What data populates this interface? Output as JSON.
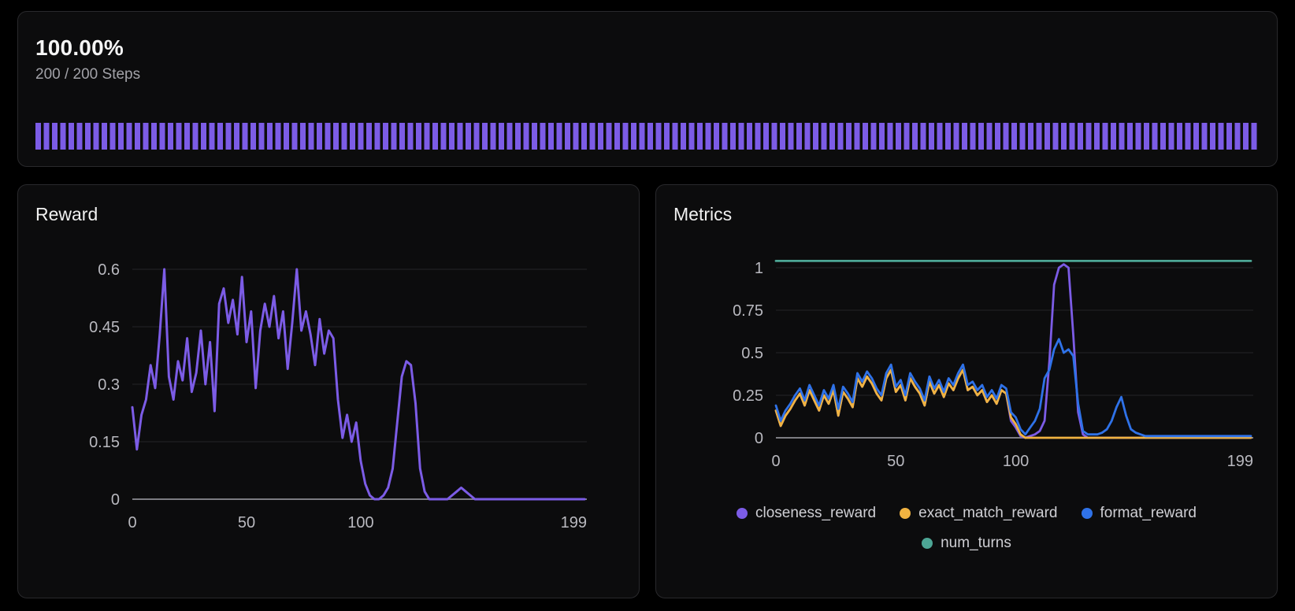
{
  "progress_card": {
    "percent": "100.00%",
    "steps": "200 / 200 Steps",
    "bar_color": "#7c5ce6"
  },
  "colors": {
    "page_background": "#000000",
    "card_background": "#0c0c0d",
    "card_border": "#29292c",
    "grid_line": "#232327",
    "axis_line": "#7c7c82",
    "axis_label": "#b9b9bf",
    "legend_text": "#cfcfd4",
    "purple": "#7c5ce6",
    "orange": "#f0b341",
    "blue": "#2f72e8",
    "teal": "#4da695"
  },
  "chart_data": [
    {
      "id": "reward",
      "type": "line",
      "title": "Reward",
      "x_max": 199,
      "x_step": 2,
      "x_ticks": [
        0,
        50,
        100,
        199
      ],
      "y_ticks": [
        0,
        0.15,
        0.3,
        0.45,
        0.6
      ],
      "ylim": [
        0,
        0.6
      ],
      "grid": true,
      "legend_position": "none",
      "series": [
        {
          "name": "reward",
          "color": "#7c5ce6",
          "values": [
            0.24,
            0.13,
            0.22,
            0.26,
            0.35,
            0.29,
            0.43,
            0.6,
            0.32,
            0.26,
            0.36,
            0.31,
            0.42,
            0.28,
            0.33,
            0.44,
            0.3,
            0.41,
            0.23,
            0.51,
            0.55,
            0.46,
            0.52,
            0.43,
            0.58,
            0.41,
            0.49,
            0.29,
            0.44,
            0.51,
            0.45,
            0.53,
            0.42,
            0.49,
            0.34,
            0.46,
            0.6,
            0.44,
            0.49,
            0.43,
            0.35,
            0.47,
            0.38,
            0.44,
            0.42,
            0.26,
            0.16,
            0.22,
            0.15,
            0.2,
            0.1,
            0.04,
            0.01,
            0.0,
            0.0,
            0.01,
            0.03,
            0.08,
            0.2,
            0.32,
            0.36,
            0.35,
            0.25,
            0.08,
            0.02,
            0.0,
            0.0,
            0.0,
            0.0,
            0.0,
            0.01,
            0.02,
            0.03,
            0.02,
            0.01,
            0.0,
            0.0,
            0.0,
            0.0,
            0.0,
            0.0,
            0.0,
            0.0,
            0.0,
            0.0,
            0.0,
            0.0,
            0.0,
            0.0,
            0.0,
            0.0,
            0.0,
            0.0,
            0.0,
            0.0,
            0.0,
            0.0,
            0.0,
            0.0,
            0.0
          ]
        }
      ]
    },
    {
      "id": "metrics",
      "type": "line",
      "title": "Metrics",
      "x_max": 199,
      "x_step": 2,
      "x_ticks": [
        0,
        50,
        100,
        199
      ],
      "y_ticks": [
        0,
        0.25,
        0.5,
        0.75,
        1
      ],
      "ylim": [
        0,
        1.05
      ],
      "grid": true,
      "legend_position": "bottom",
      "series": [
        {
          "name": "closeness_reward",
          "color": "#7c5ce6",
          "values": [
            0.16,
            0.07,
            0.13,
            0.17,
            0.22,
            0.26,
            0.19,
            0.28,
            0.22,
            0.16,
            0.25,
            0.2,
            0.28,
            0.13,
            0.27,
            0.23,
            0.18,
            0.35,
            0.3,
            0.36,
            0.32,
            0.26,
            0.22,
            0.35,
            0.4,
            0.27,
            0.31,
            0.22,
            0.35,
            0.3,
            0.26,
            0.19,
            0.33,
            0.26,
            0.31,
            0.24,
            0.32,
            0.28,
            0.35,
            0.4,
            0.28,
            0.3,
            0.25,
            0.28,
            0.21,
            0.25,
            0.2,
            0.28,
            0.26,
            0.1,
            0.06,
            0.01,
            0.0,
            0.01,
            0.02,
            0.04,
            0.1,
            0.45,
            0.9,
            1.0,
            1.02,
            1.0,
            0.6,
            0.15,
            0.02,
            0.0,
            0.0,
            0.0,
            0.0,
            0.0,
            0.0,
            0.0,
            0.0,
            0.0,
            0.0,
            0.0,
            0.0,
            0.0,
            0.0,
            0.0,
            0.0,
            0.0,
            0.0,
            0.0,
            0.0,
            0.0,
            0.0,
            0.0,
            0.0,
            0.0,
            0.0,
            0.0,
            0.0,
            0.0,
            0.0,
            0.0,
            0.0,
            0.0,
            0.0,
            0.0
          ]
        },
        {
          "name": "exact_match_reward",
          "color": "#f0b341",
          "values": [
            0.16,
            0.07,
            0.13,
            0.17,
            0.22,
            0.26,
            0.19,
            0.28,
            0.22,
            0.16,
            0.25,
            0.2,
            0.28,
            0.13,
            0.27,
            0.23,
            0.18,
            0.35,
            0.3,
            0.36,
            0.32,
            0.26,
            0.22,
            0.35,
            0.4,
            0.27,
            0.31,
            0.22,
            0.35,
            0.3,
            0.26,
            0.19,
            0.33,
            0.26,
            0.31,
            0.24,
            0.32,
            0.28,
            0.35,
            0.4,
            0.28,
            0.3,
            0.25,
            0.28,
            0.21,
            0.25,
            0.2,
            0.28,
            0.26,
            0.12,
            0.08,
            0.02,
            0.0,
            0.0,
            0.0,
            0.0,
            0.0,
            0.0,
            0.0,
            0.0,
            0.0,
            0.0,
            0.0,
            0.0,
            0.0,
            0.0,
            0.0,
            0.0,
            0.0,
            0.0,
            0.0,
            0.0,
            0.0,
            0.0,
            0.0,
            0.0,
            0.0,
            0.0,
            0.0,
            0.0,
            0.0,
            0.0,
            0.0,
            0.0,
            0.0,
            0.0,
            0.0,
            0.0,
            0.0,
            0.0,
            0.0,
            0.0,
            0.0,
            0.0,
            0.0,
            0.0,
            0.0,
            0.0,
            0.0,
            0.0
          ]
        },
        {
          "name": "format_reward",
          "color": "#2f72e8",
          "values": [
            0.19,
            0.1,
            0.16,
            0.2,
            0.25,
            0.29,
            0.22,
            0.31,
            0.25,
            0.19,
            0.28,
            0.23,
            0.31,
            0.17,
            0.3,
            0.26,
            0.21,
            0.38,
            0.33,
            0.39,
            0.35,
            0.29,
            0.25,
            0.38,
            0.43,
            0.3,
            0.34,
            0.25,
            0.38,
            0.33,
            0.29,
            0.22,
            0.36,
            0.29,
            0.34,
            0.27,
            0.35,
            0.31,
            0.38,
            0.43,
            0.31,
            0.33,
            0.28,
            0.31,
            0.24,
            0.28,
            0.23,
            0.31,
            0.29,
            0.15,
            0.12,
            0.05,
            0.02,
            0.06,
            0.1,
            0.17,
            0.35,
            0.4,
            0.52,
            0.58,
            0.5,
            0.52,
            0.48,
            0.2,
            0.04,
            0.02,
            0.02,
            0.02,
            0.03,
            0.05,
            0.1,
            0.18,
            0.24,
            0.13,
            0.05,
            0.03,
            0.02,
            0.01,
            0.01,
            0.01,
            0.01,
            0.01,
            0.01,
            0.01,
            0.01,
            0.01,
            0.01,
            0.01,
            0.01,
            0.01,
            0.01,
            0.01,
            0.01,
            0.01,
            0.01,
            0.01,
            0.01,
            0.01,
            0.01,
            0.01
          ]
        },
        {
          "name": "num_turns",
          "color": "#4da695",
          "constant": 1.04,
          "count": 100
        }
      ]
    }
  ]
}
